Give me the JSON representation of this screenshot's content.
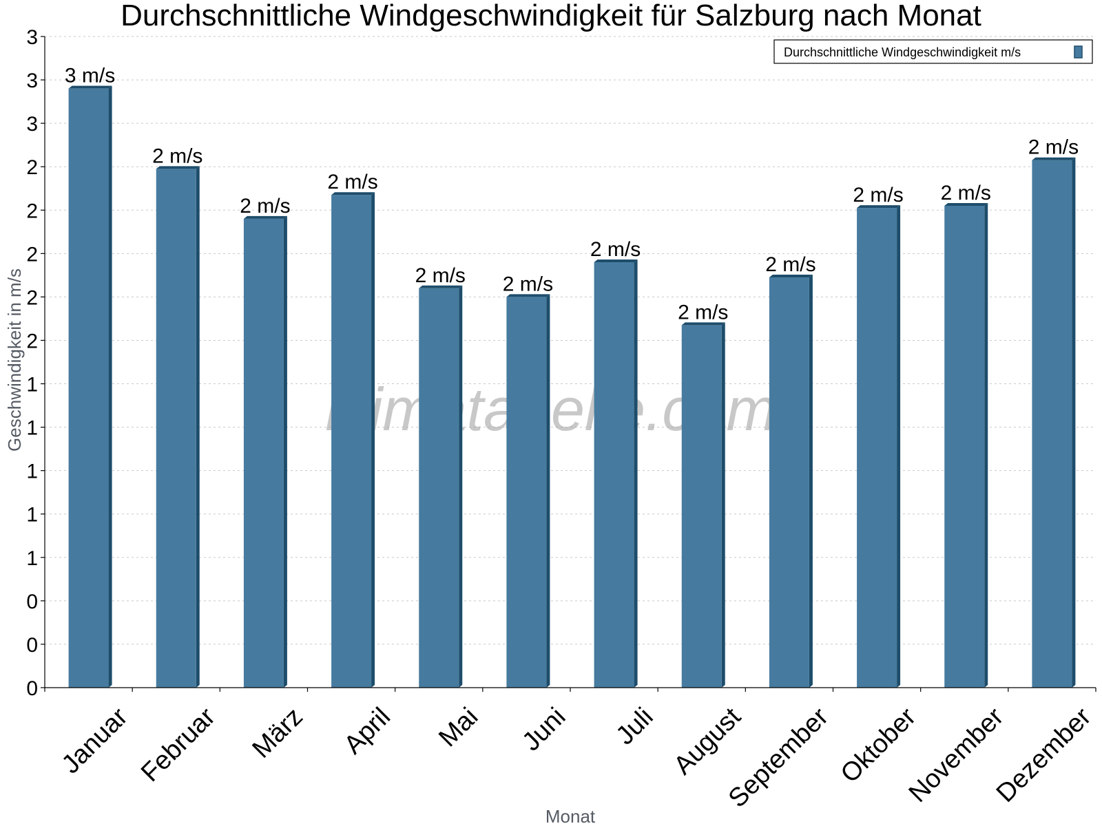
{
  "chart_data": {
    "type": "bar",
    "title": "Durchschnittliche Windgeschwindigkeit für Salzburg nach Monat",
    "xlabel": "Monat",
    "ylabel": "Geschwindigkeit in m/s",
    "categories": [
      "Januar",
      "Februar",
      "März",
      "April",
      "Mai",
      "Juni",
      "Juli",
      "August",
      "September",
      "Oktober",
      "November",
      "Dezember"
    ],
    "series": [
      {
        "name": "Durchschnittliche Windgeschwindigkeit m/s",
        "values": [
          2.76,
          2.39,
          2.16,
          2.27,
          1.84,
          1.8,
          1.96,
          1.67,
          1.89,
          2.21,
          2.22,
          2.43
        ],
        "labels": [
          "3 m/s",
          "2 m/s",
          "2 m/s",
          "2 m/s",
          "2 m/s",
          "2 m/s",
          "2 m/s",
          "2 m/s",
          "2 m/s",
          "2 m/s",
          "2 m/s",
          "2 m/s"
        ],
        "color": "#467b9f",
        "side_color": "#1e4d6b"
      }
    ],
    "ylim": [
      0,
      3
    ],
    "yticks": [
      0,
      0.2,
      0.4,
      0.6,
      0.8,
      1.0,
      1.2,
      1.4,
      1.6,
      1.8,
      2.0,
      2.2,
      2.4,
      2.6,
      2.8,
      3.0
    ],
    "ytick_labels": [
      "0",
      "0",
      "0",
      "1",
      "1",
      "1",
      "1",
      "1",
      "2",
      "2",
      "2",
      "2",
      "2",
      "3",
      "3",
      "3"
    ],
    "grid": true,
    "legend_position": "top-right"
  },
  "watermark": "klimatabelle.com"
}
